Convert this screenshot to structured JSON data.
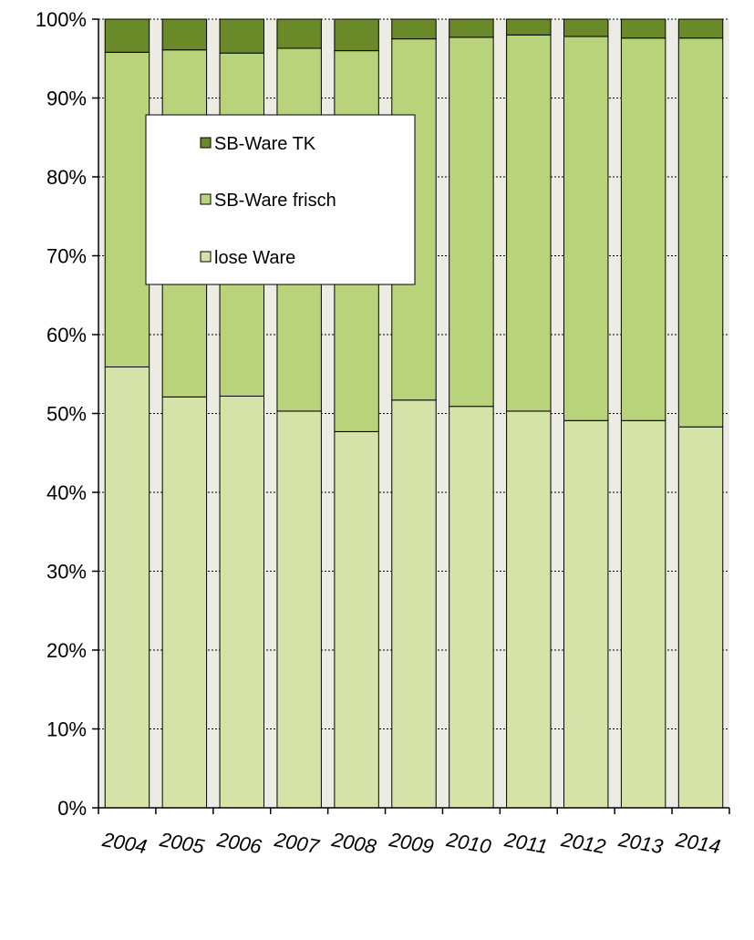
{
  "chart_data": {
    "type": "bar",
    "stacked": true,
    "percent_stacked": true,
    "categories": [
      "2004",
      "2005",
      "2006",
      "2007",
      "2008",
      "2009",
      "2010",
      "2011",
      "2012",
      "2013",
      "2014"
    ],
    "series": [
      {
        "name": "lose Ware",
        "color": "#d5e3a9",
        "values": [
          55.9,
          52.1,
          52.2,
          50.3,
          47.7,
          51.7,
          50.9,
          50.3,
          49.1,
          49.1,
          48.3
        ]
      },
      {
        "name": "SB-Ware frisch",
        "color": "#b8d37a",
        "values": [
          39.9,
          44.0,
          43.5,
          46.0,
          48.3,
          45.8,
          46.8,
          47.7,
          48.7,
          48.5,
          49.3
        ]
      },
      {
        "name": "SB-Ware TK",
        "color": "#6a8a2a",
        "values": [
          4.2,
          3.9,
          4.3,
          3.7,
          4.0,
          2.5,
          2.3,
          2.0,
          2.2,
          2.4,
          2.4
        ]
      }
    ],
    "y_ticks": [
      "0%",
      "10%",
      "20%",
      "30%",
      "40%",
      "50%",
      "60%",
      "70%",
      "80%",
      "90%",
      "100%"
    ],
    "ylim": [
      0,
      100
    ],
    "grid": true,
    "legend": {
      "placement": "upper-left inside plot",
      "entries": [
        "SB-Ware TK",
        "SB-Ware frisch",
        "lose Ware"
      ]
    },
    "title": "",
    "xlabel": "",
    "ylabel": ""
  }
}
